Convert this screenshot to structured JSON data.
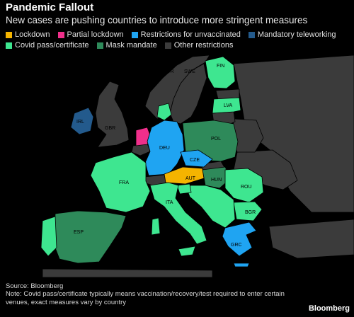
{
  "title": "Pandemic Fallout",
  "subtitle": "New cases are pushing countries to introduce more stringent measures",
  "legend": [
    {
      "label": "Lockdown",
      "color": "#f5b400"
    },
    {
      "label": "Partial lockdown",
      "color": "#ef2f8b"
    },
    {
      "label": "Restrictions for unvaccinated",
      "color": "#1fa4f2"
    },
    {
      "label": "Mandatory teleworking",
      "color": "#235a8c"
    },
    {
      "label": "Covid pass/certificate",
      "color": "#3ee690"
    },
    {
      "label": "Mask mandate",
      "color": "#2e8a5a"
    },
    {
      "label": "Other restrictions",
      "color": "#3b3b3b"
    }
  ],
  "country_labels": {
    "nor": "NOR",
    "swe": "SWE",
    "fin": "FIN",
    "lva": "LVA",
    "irl": "IRL",
    "gbr": "GBR",
    "deu": "DEU",
    "pol": "POL",
    "cze": "CZE",
    "aut": "AUT",
    "hun": "HUN",
    "fra": "FRA",
    "rou": "ROU",
    "ita": "ITA",
    "bgr": "BGR",
    "esp": "ESP",
    "grc": "GRC"
  },
  "source": "Source: Bloomberg",
  "note": "Note: Covid pass/certificate typically means vaccination/recovery/test required to enter certain venues, exact measures vary by country",
  "brand": "Bloomberg"
}
